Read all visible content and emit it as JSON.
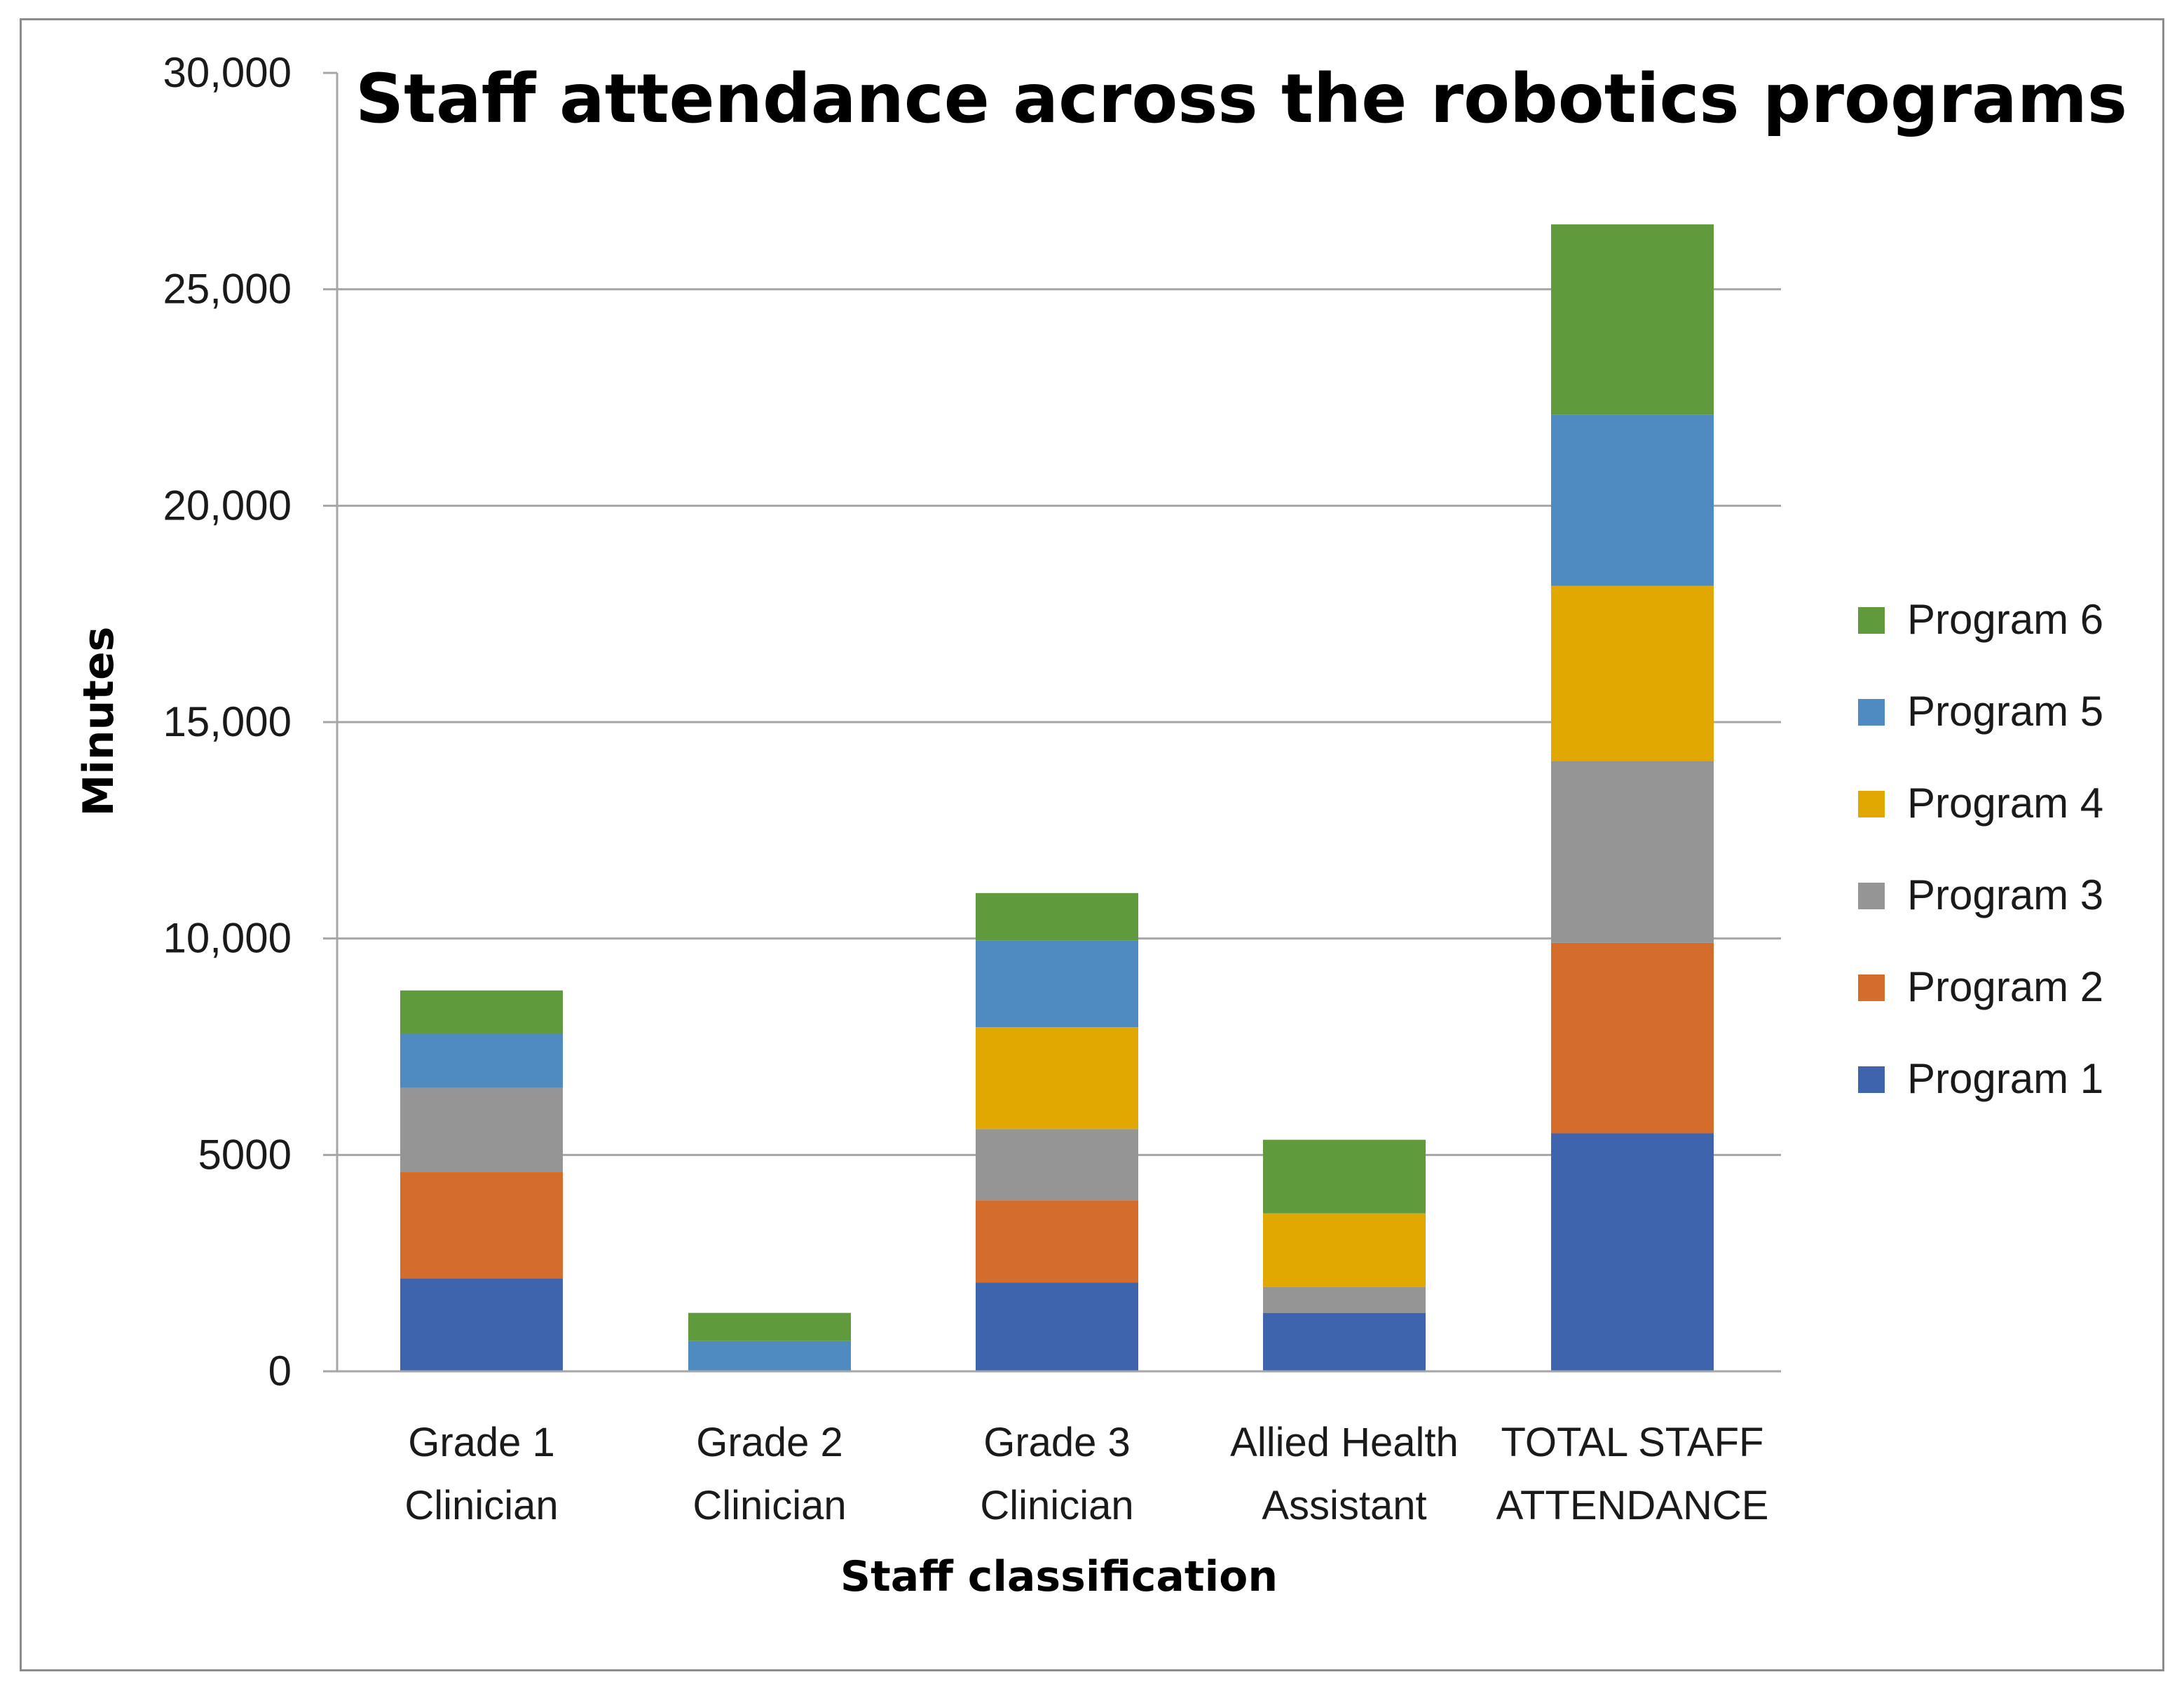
{
  "chart_data": {
    "type": "bar",
    "stacked": true,
    "title": "Staff attendance across the robotics programs",
    "xlabel": "Staff classification",
    "ylabel": "Minutes",
    "ylim": [
      0,
      30000
    ],
    "yticks": [
      0,
      5000,
      10000,
      15000,
      20000,
      25000,
      30000
    ],
    "ytick_labels": [
      "0",
      "5000",
      "10,000",
      "15,000",
      "20,000",
      "25,000",
      "30,000"
    ],
    "legend_position": "right",
    "categories": [
      [
        "Grade 1",
        "Clinician"
      ],
      [
        "Grade 2",
        "Clinician"
      ],
      [
        "Grade 3",
        "Clinician"
      ],
      [
        "Allied Health",
        "Assistant"
      ],
      [
        "TOTAL STAFF",
        "ATTENDANCE"
      ]
    ],
    "series": [
      {
        "name": "Program 1",
        "color": "#3e64ad",
        "values": [
          2150,
          0,
          2050,
          1350,
          5500
        ]
      },
      {
        "name": "Program 2",
        "color": "#d46d2b",
        "values": [
          2450,
          0,
          1900,
          0,
          4400
        ]
      },
      {
        "name": "Program 3",
        "color": "#959595",
        "values": [
          1950,
          0,
          1650,
          600,
          4200
        ]
      },
      {
        "name": "Program 4",
        "color": "#e0a800",
        "values": [
          0,
          0,
          2350,
          1700,
          4050
        ]
      },
      {
        "name": "Program 5",
        "color": "#4f8bc0",
        "values": [
          1250,
          700,
          2000,
          0,
          3950
        ]
      },
      {
        "name": "Program 6",
        "color": "#5f9a3c",
        "values": [
          1000,
          650,
          1100,
          1700,
          4400
        ]
      }
    ]
  }
}
